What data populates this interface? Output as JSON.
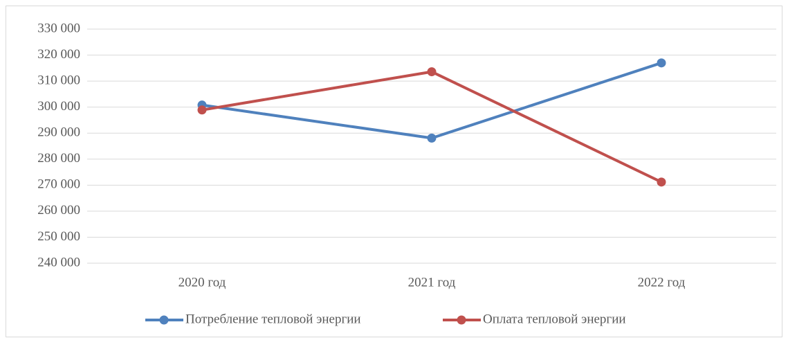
{
  "chart_data": {
    "type": "line",
    "categories": [
      "2020 год",
      "2021 год",
      "2022 год"
    ],
    "series": [
      {
        "name": "Потребление тепловой энергии",
        "color": "#4f81bd",
        "values": [
          300800,
          288100,
          317000
        ]
      },
      {
        "name": "Оплата тепловой энергии",
        "color": "#c0504d",
        "values": [
          298900,
          313600,
          271200
        ]
      }
    ],
    "ylim": [
      240000,
      330000
    ],
    "yticks": [
      {
        "value": 240000,
        "label": "240 000"
      },
      {
        "value": 250000,
        "label": "250 000"
      },
      {
        "value": 260000,
        "label": "260 000"
      },
      {
        "value": 270000,
        "label": "270 000"
      },
      {
        "value": 280000,
        "label": "280 000"
      },
      {
        "value": 290000,
        "label": "290 000"
      },
      {
        "value": 300000,
        "label": "300 000"
      },
      {
        "value": 310000,
        "label": "310 000"
      },
      {
        "value": 320000,
        "label": "320 000"
      },
      {
        "value": 330000,
        "label": "330 000"
      }
    ],
    "grid": true,
    "legend": "bottom"
  }
}
